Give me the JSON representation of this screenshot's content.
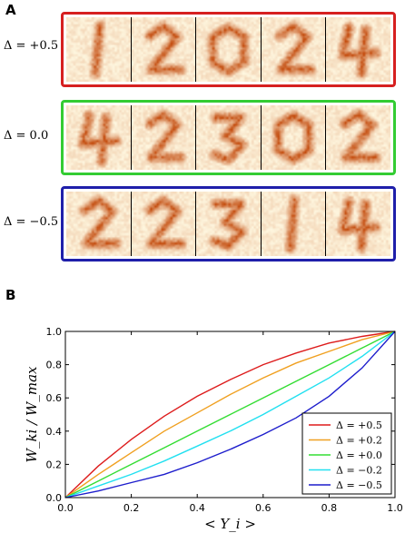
{
  "panel_a": {
    "letter": "A",
    "rows": [
      {
        "label": "Δ = +0.5",
        "color": "#d62020",
        "digits": [
          "1",
          "2",
          "0",
          "2",
          "4"
        ]
      },
      {
        "label": "Δ = 0.0",
        "color": "#33cc33",
        "digits": [
          "4",
          "2",
          "3",
          "0",
          "2"
        ]
      },
      {
        "label": "Δ = −0.5",
        "color": "#1f1faa",
        "digits": [
          "2",
          "2",
          "3",
          "1",
          "4"
        ]
      }
    ]
  },
  "panel_b": {
    "letter": "B",
    "chart_data": {
      "type": "line",
      "xlabel": "< Y_i >",
      "ylabel": "W_ki / W_max",
      "xlim": [
        0.0,
        1.0
      ],
      "ylim": [
        0.0,
        1.0
      ],
      "xticks": [
        "0.0",
        "0.2",
        "0.4",
        "0.6",
        "0.8",
        "1.0"
      ],
      "yticks": [
        "0.0",
        "0.2",
        "0.4",
        "0.6",
        "0.8",
        "1.0"
      ],
      "grid": false,
      "legend_position": "bottom-right",
      "x": [
        0.0,
        0.1,
        0.2,
        0.3,
        0.4,
        0.5,
        0.6,
        0.7,
        0.8,
        0.9,
        1.0
      ],
      "series": [
        {
          "name": "Δ = +0.5",
          "color": "#dd1c1c",
          "values": [
            0.0,
            0.19,
            0.35,
            0.49,
            0.61,
            0.71,
            0.8,
            0.87,
            0.93,
            0.97,
            1.0
          ]
        },
        {
          "name": "Δ = +0.2",
          "color": "#f0a020",
          "values": [
            0.0,
            0.14,
            0.27,
            0.4,
            0.51,
            0.62,
            0.72,
            0.81,
            0.88,
            0.95,
            1.0
          ]
        },
        {
          "name": "Δ = +0.0",
          "color": "#33dd33",
          "values": [
            0.0,
            0.1,
            0.2,
            0.3,
            0.4,
            0.5,
            0.6,
            0.7,
            0.8,
            0.9,
            1.0
          ]
        },
        {
          "name": "Δ = −0.2",
          "color": "#22e0f0",
          "values": [
            0.0,
            0.07,
            0.14,
            0.22,
            0.31,
            0.4,
            0.5,
            0.61,
            0.72,
            0.85,
            1.0
          ]
        },
        {
          "name": "Δ = −0.5",
          "color": "#1d1dcc",
          "values": [
            0.0,
            0.04,
            0.09,
            0.14,
            0.21,
            0.29,
            0.38,
            0.48,
            0.61,
            0.78,
            1.0
          ]
        }
      ]
    }
  }
}
